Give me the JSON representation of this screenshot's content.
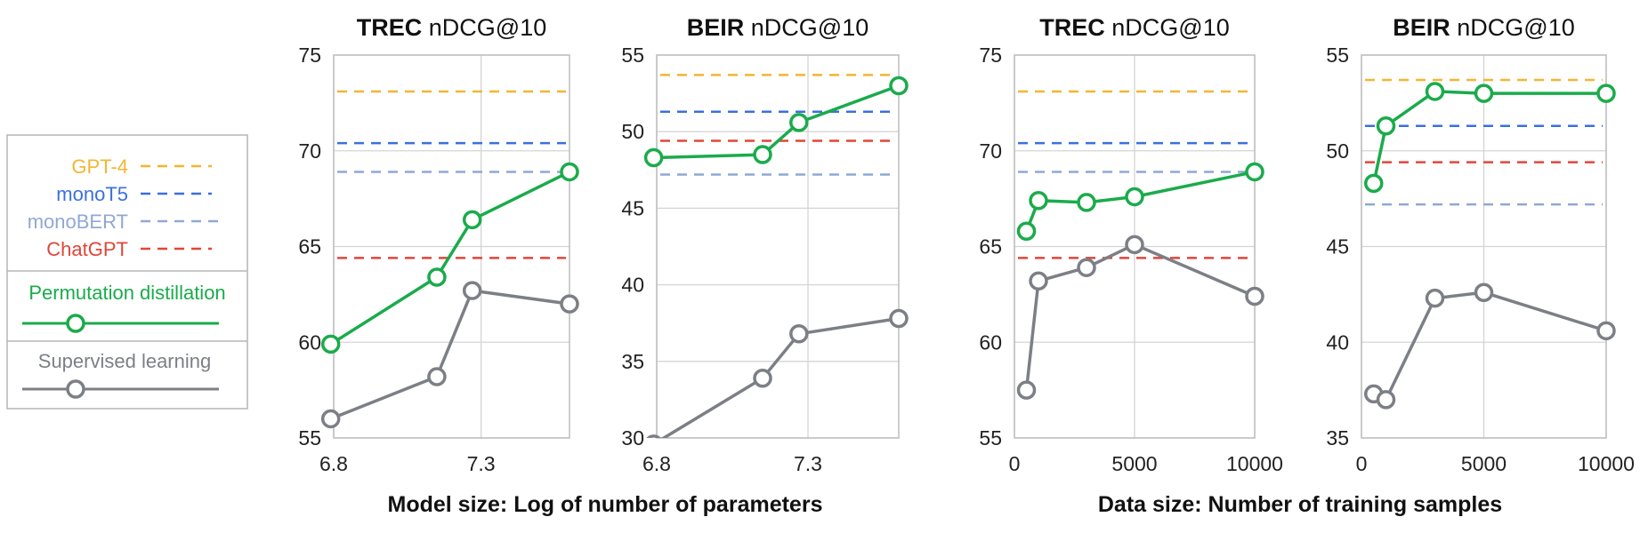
{
  "colors": {
    "gpt4": "#f2b632",
    "monot5": "#3b6fe0",
    "monobert": "#8fa9d4",
    "chatgpt": "#e0463a",
    "perm": "#1aab4b",
    "sup": "#7c7f85"
  },
  "legend": {
    "gpt4": "GPT-4",
    "monot5": "monoT5",
    "monobert": "monoBERT",
    "chatgpt": "ChatGPT",
    "perm": "Permutation distillation",
    "sup": "Supervised learning"
  },
  "xlabels": {
    "model": "Model size: Log of number of parameters",
    "data": "Data size: Number of training samples"
  },
  "chart_data": [
    {
      "type": "line",
      "title_bold": "TREC",
      "title_rest": " nDCG@10",
      "xlim": [
        6.8,
        7.6
      ],
      "xticks": [
        "6.8",
        "7.3"
      ],
      "xtick_values": [
        6.8,
        7.3
      ],
      "ylim": [
        55,
        75
      ],
      "yticks": [
        "55",
        "60",
        "65",
        "70",
        "75"
      ],
      "baselines": {
        "gpt4": 73.1,
        "monot5": 70.4,
        "monobert": 68.9,
        "chatgpt": 64.4
      },
      "series": [
        {
          "key": "perm",
          "name": "Permutation distillation",
          "x": [
            6.79,
            7.15,
            7.27,
            7.6
          ],
          "y": [
            59.9,
            63.4,
            66.4,
            68.9
          ]
        },
        {
          "key": "sup",
          "name": "Supervised learning",
          "x": [
            6.79,
            7.15,
            7.27,
            7.6
          ],
          "y": [
            56.0,
            58.2,
            62.7,
            62.0
          ]
        }
      ]
    },
    {
      "type": "line",
      "title_bold": "BEIR",
      "title_rest": " nDCG@10",
      "xlim": [
        6.8,
        7.6
      ],
      "xticks": [
        "6.8",
        "7.3"
      ],
      "xtick_values": [
        6.8,
        7.3
      ],
      "ylim": [
        30,
        55
      ],
      "yticks": [
        "30",
        "35",
        "40",
        "45",
        "50",
        "55"
      ],
      "baselines": {
        "gpt4": 53.7,
        "monot5": 51.3,
        "monobert": 47.2,
        "chatgpt": 49.4
      },
      "series": [
        {
          "key": "perm",
          "name": "Permutation distillation",
          "x": [
            6.79,
            7.15,
            7.27,
            7.6
          ],
          "y": [
            48.3,
            48.5,
            50.6,
            53.0
          ]
        },
        {
          "key": "sup",
          "name": "Supervised learning",
          "x": [
            6.79,
            7.15,
            7.27,
            7.6
          ],
          "y": [
            29.6,
            33.9,
            36.8,
            37.8
          ]
        }
      ]
    },
    {
      "type": "line",
      "title_bold": "TREC",
      "title_rest": " nDCG@10",
      "xlim": [
        0,
        10000
      ],
      "xticks": [
        "0",
        "5000",
        "10000"
      ],
      "xtick_values": [
        0,
        5000,
        10000
      ],
      "ylim": [
        55,
        75
      ],
      "yticks": [
        "55",
        "60",
        "65",
        "70",
        "75"
      ],
      "baselines": {
        "gpt4": 73.1,
        "monot5": 70.4,
        "monobert": 68.9,
        "chatgpt": 64.4
      },
      "series": [
        {
          "key": "perm",
          "name": "Permutation distillation",
          "x": [
            500,
            1000,
            3000,
            5000,
            10000
          ],
          "y": [
            65.8,
            67.4,
            67.3,
            67.6,
            68.9
          ]
        },
        {
          "key": "sup",
          "name": "Supervised learning",
          "x": [
            500,
            1000,
            3000,
            5000,
            10000
          ],
          "y": [
            57.5,
            63.2,
            63.9,
            65.1,
            62.4
          ]
        }
      ]
    },
    {
      "type": "line",
      "title_bold": "BEIR",
      "title_rest": " nDCG@10",
      "xlim": [
        0,
        10000
      ],
      "xticks": [
        "0",
        "5000",
        "10000"
      ],
      "xtick_values": [
        0,
        5000,
        10000
      ],
      "ylim": [
        35,
        55
      ],
      "yticks": [
        "35",
        "40",
        "45",
        "50",
        "55"
      ],
      "baselines": {
        "gpt4": 53.7,
        "monot5": 51.3,
        "monobert": 47.2,
        "chatgpt": 49.4
      },
      "series": [
        {
          "key": "perm",
          "name": "Permutation distillation",
          "x": [
            500,
            1000,
            3000,
            5000,
            10000
          ],
          "y": [
            48.3,
            51.3,
            53.1,
            53.0,
            53.0
          ]
        },
        {
          "key": "sup",
          "name": "Supervised learning",
          "x": [
            500,
            1000,
            3000,
            5000,
            10000
          ],
          "y": [
            37.3,
            37.0,
            42.3,
            42.6,
            40.6
          ]
        }
      ]
    }
  ]
}
